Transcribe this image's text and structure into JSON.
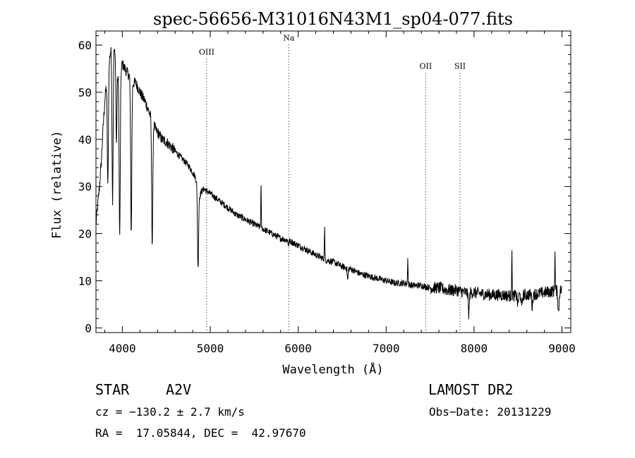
{
  "chart_data": {
    "type": "line",
    "title": "spec-56656-M31016N43M1_sp04-077.fits",
    "xlabel": "Wavelength (Å)",
    "ylabel": "Flux (relative)",
    "xlim": [
      3700,
      9100
    ],
    "ylim": [
      -1,
      63
    ],
    "x_ticks": [
      4000,
      5000,
      6000,
      7000,
      8000,
      9000
    ],
    "y_ticks": [
      0,
      10,
      20,
      30,
      40,
      50,
      60
    ],
    "grid": false,
    "series": [
      {
        "x": [
          3700,
          3740,
          3760,
          3780,
          3800,
          3820,
          3840,
          3860,
          3880,
          3900,
          3920,
          3950,
          3980,
          4000,
          4030,
          4060,
          4100,
          4120,
          4150,
          4180,
          4200,
          4230,
          4260,
          4300,
          4340,
          4380,
          4420,
          4450,
          4500,
          4550,
          4600,
          4650,
          4700,
          4750,
          4800,
          4830,
          4860,
          4880,
          4900,
          4930,
          4960,
          5000,
          5100,
          5200,
          5300,
          5400,
          5500,
          5600,
          5700,
          5800,
          5900,
          6000,
          6100,
          6200,
          6300,
          6400,
          6500,
          6600,
          6700,
          6800,
          6900,
          7000,
          7100,
          7200,
          7300,
          7400,
          7500,
          7600,
          7700,
          7800,
          7900,
          8000,
          8100,
          8200,
          8300,
          8400,
          8500,
          8600,
          8700,
          8800,
          8900,
          9000
        ],
        "y": [
          22,
          30,
          35,
          42,
          48,
          52,
          55,
          58,
          60,
          61,
          57,
          53,
          55,
          56,
          55,
          54,
          53,
          52,
          52,
          51,
          50,
          49,
          48,
          46,
          44,
          42,
          41,
          40,
          39.5,
          38.5,
          37.5,
          36.5,
          35.5,
          34.5,
          33,
          32,
          30,
          28,
          29,
          29.5,
          29,
          28.5,
          27,
          25.5,
          24,
          23,
          22,
          21,
          20,
          19,
          18.5,
          17.5,
          16.5,
          15.5,
          14.5,
          14,
          13,
          12.5,
          11.5,
          11,
          10.5,
          10,
          9.5,
          9.5,
          9,
          9,
          8.5,
          8.5,
          8,
          8,
          7.5,
          7.5,
          7.2,
          7,
          7,
          6.8,
          6.8,
          7,
          7.2,
          7.5,
          7.8,
          8
        ]
      }
    ],
    "absorption_lines": [
      {
        "x": 3835,
        "depth": 0.45
      },
      {
        "x": 3889,
        "depth": 0.55
      },
      {
        "x": 3933,
        "depth": 0.3
      },
      {
        "x": 3970,
        "depth": 0.65
      },
      {
        "x": 4101,
        "depth": 0.62
      },
      {
        "x": 4340,
        "depth": 0.6
      },
      {
        "x": 4861,
        "depth": 0.58
      },
      {
        "x": 5890,
        "depth": 0.05
      },
      {
        "x": 6563,
        "depth": 0.2
      },
      {
        "x": 7940,
        "depth": 0.6
      },
      {
        "x": 8498,
        "depth": 0.3
      },
      {
        "x": 8542,
        "depth": 0.4
      },
      {
        "x": 8662,
        "depth": 0.4
      },
      {
        "x": 8960,
        "depth": 0.6
      }
    ],
    "emission_lines": [
      {
        "x": 5577,
        "height": 9
      },
      {
        "x": 6300,
        "height": 7
      },
      {
        "x": 7246,
        "height": 6
      },
      {
        "x": 8430,
        "height": 9
      },
      {
        "x": 8920,
        "height": 9
      }
    ],
    "line_markers": [
      {
        "x": 4959,
        "label": "OIII",
        "label_y": 58
      },
      {
        "x": 5893,
        "label": "Na",
        "label_y": 61
      },
      {
        "x": 7450,
        "label": "OII",
        "label_y": 55
      },
      {
        "x": 7840,
        "label": "SII",
        "label_y": 55
      }
    ]
  },
  "info": {
    "object_type": "STAR",
    "subclass": "A2V",
    "survey": "LAMOST DR2",
    "cz": "cz = −130.2 ± 2.7 km/s",
    "obs_date": "Obs−Date: 20131229",
    "coords": "RA =  17.05844, DEC =  42.97670"
  }
}
